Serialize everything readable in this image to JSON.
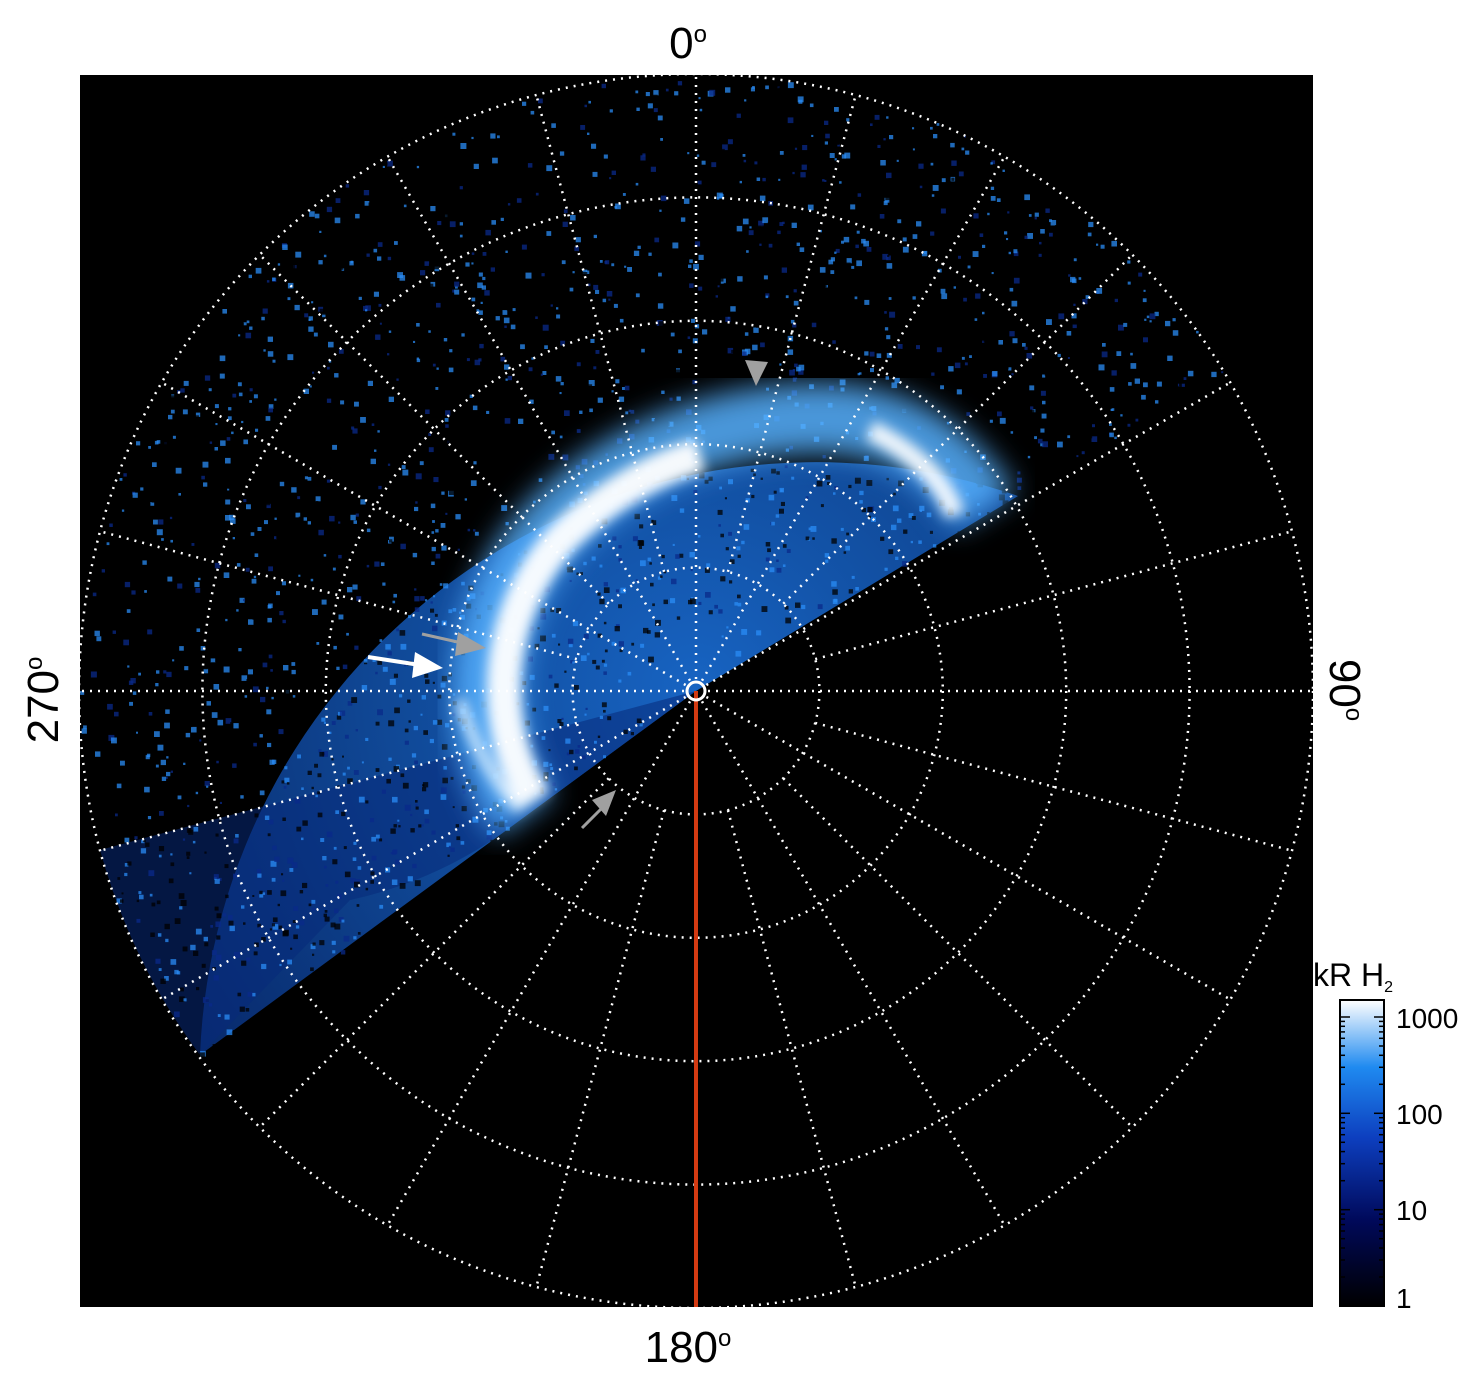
{
  "polar_labels": {
    "top": "0",
    "right": "90",
    "bottom": "180",
    "left": "270",
    "degree_symbol": "o"
  },
  "colorbar": {
    "title_main": "kR H",
    "title_sub": "2",
    "ticks": [
      "1000",
      "100",
      "10",
      "1"
    ],
    "scale": "log",
    "range": [
      1,
      1500
    ]
  },
  "colors": {
    "background": "#000000",
    "grid": "#ffffff",
    "reference_line": "#d33a12",
    "aurora_low": "#0a2a8a",
    "aurora_mid": "#1e7fe6",
    "aurora_high": "#ffffff",
    "arrow_white": "#ffffff",
    "arrow_gray": "#a0a0a0"
  },
  "grid": {
    "ring_count": 5,
    "spoke_count": 24
  }
}
